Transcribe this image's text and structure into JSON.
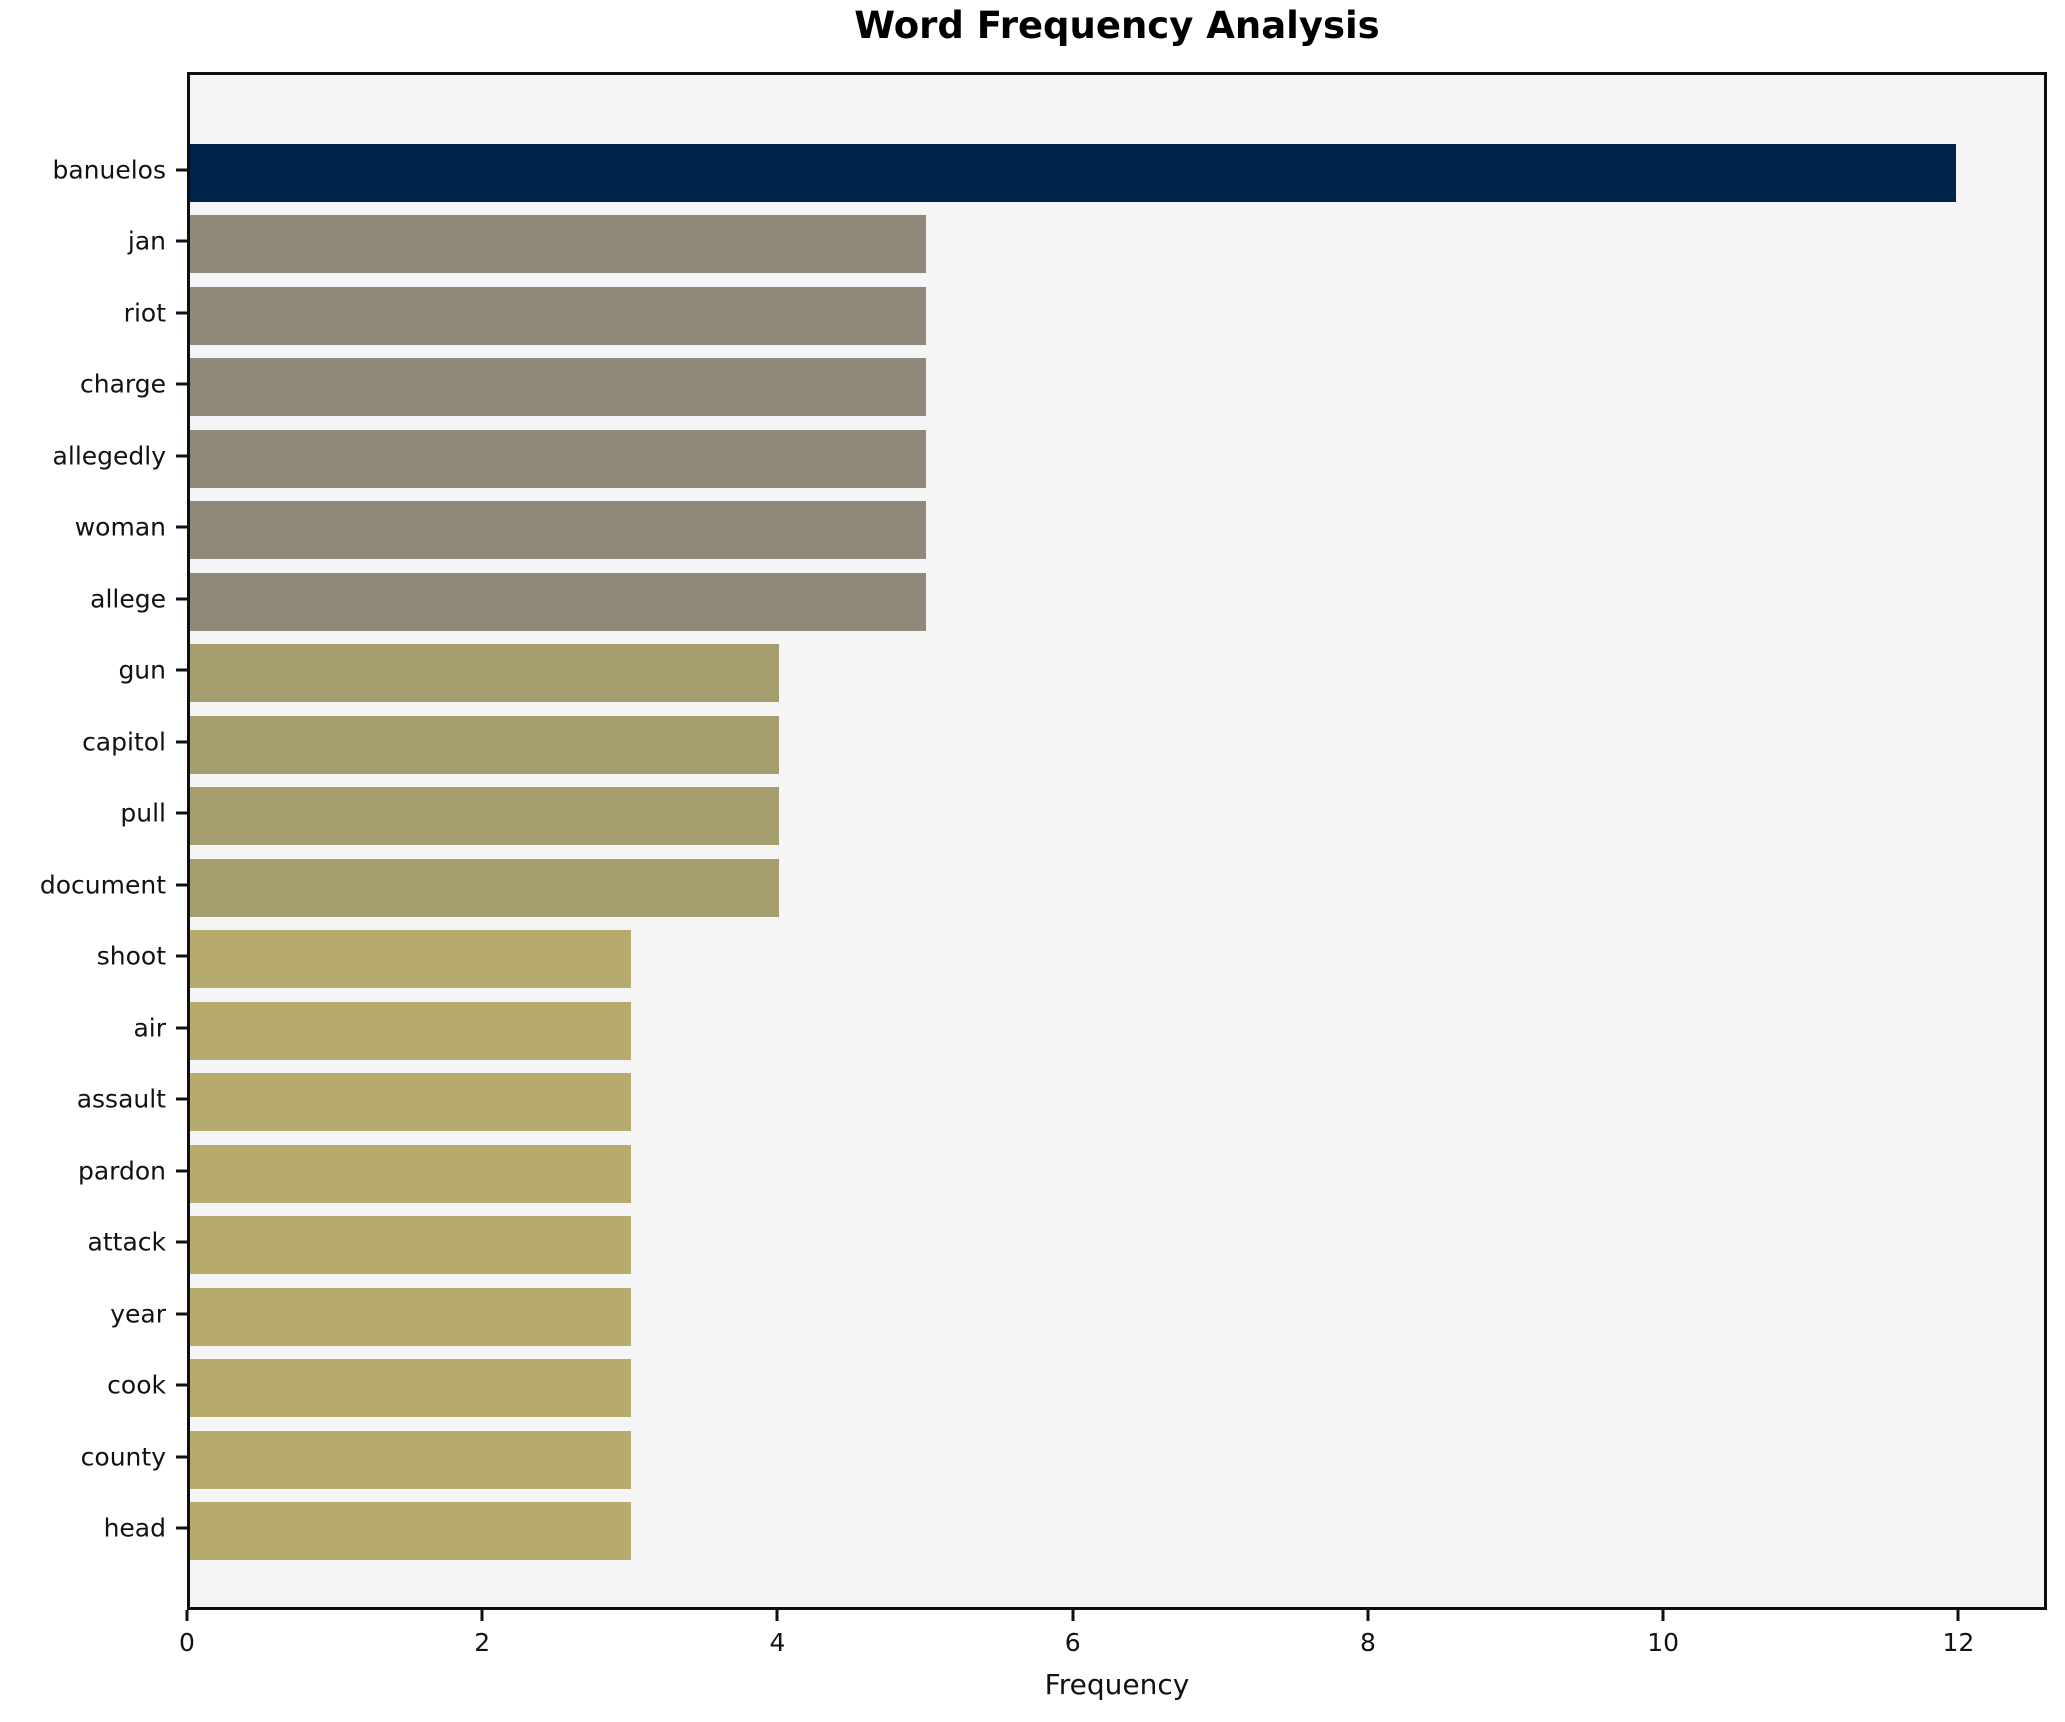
{
  "title": "Word Frequency Analysis",
  "x_axis": {
    "label": "Frequency",
    "tick_labels": [
      "0",
      "2",
      "4",
      "6",
      "8",
      "10",
      "12"
    ]
  },
  "chart_data": {
    "type": "bar",
    "orientation": "horizontal",
    "title": "Word Frequency Analysis",
    "xlabel": "Frequency",
    "ylabel": "",
    "categories": [
      "banuelos",
      "jan",
      "riot",
      "charge",
      "allegedly",
      "woman",
      "allege",
      "gun",
      "capitol",
      "pull",
      "document",
      "shoot",
      "air",
      "assault",
      "pardon",
      "attack",
      "year",
      "cook",
      "county",
      "head"
    ],
    "values": [
      12,
      5,
      5,
      5,
      5,
      5,
      5,
      4,
      4,
      4,
      4,
      3,
      3,
      3,
      3,
      3,
      3,
      3,
      3,
      3
    ],
    "bar_colors": [
      "#002349",
      "#908879",
      "#908879",
      "#908879",
      "#908879",
      "#908879",
      "#908879",
      "#a69d6f",
      "#a69d6f",
      "#a69d6f",
      "#a69d6f",
      "#b6aa6c",
      "#b6aa6c",
      "#b6aa6c",
      "#b6aa6c",
      "#b6aa6c",
      "#b6aa6c",
      "#b6aa6c",
      "#b6aa6c",
      "#b6aa6c"
    ],
    "xlim": [
      0,
      12.6
    ],
    "xticks": [
      0,
      2,
      4,
      6,
      8,
      10,
      12
    ],
    "grid": false,
    "legend_position": "none",
    "plot_background": "#f5f5f6",
    "figure_background": "#ffffff",
    "spine_color": "#0d0d12"
  }
}
